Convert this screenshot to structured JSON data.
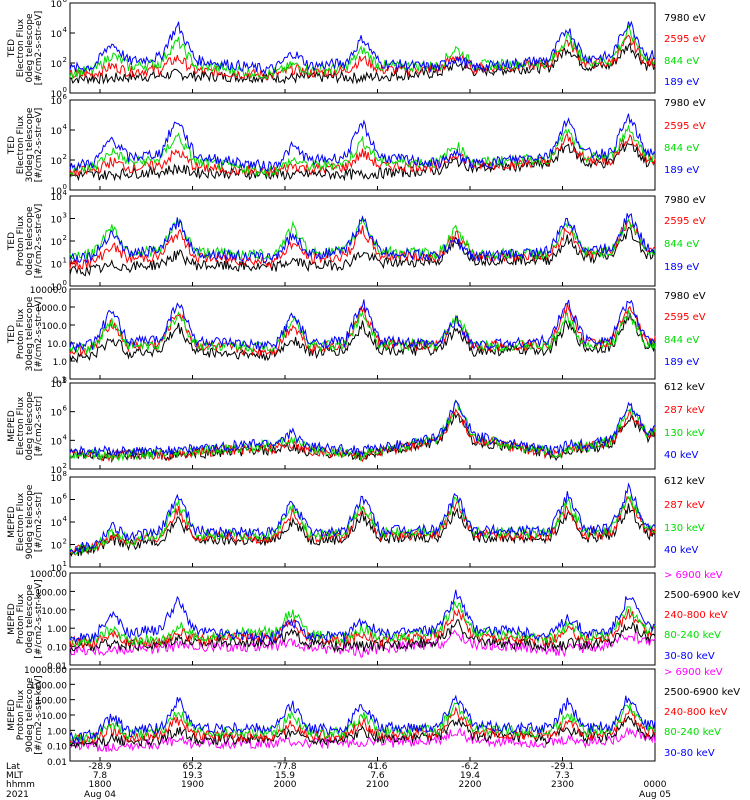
{
  "colors": {
    "blue": "#0000ff",
    "red": "#ff0000",
    "green": "#00dd00",
    "black": "#000000",
    "magenta": "#ff00ff"
  },
  "time_axis": {
    "rows": [
      {
        "label": "Lat",
        "values": [
          "-28.9",
          "65.2",
          "-77.8",
          "41.6",
          "-6.2",
          "-29.1",
          ""
        ]
      },
      {
        "label": "MLT",
        "values": [
          "7.8",
          "19.3",
          "15.9",
          "7.6",
          "19.4",
          "7.3",
          ""
        ]
      },
      {
        "label": "hhmm",
        "values": [
          "1800",
          "1900",
          "2000",
          "2100",
          "2200",
          "2300",
          "0000"
        ]
      },
      {
        "label": "2021",
        "values": [
          "Aug 04",
          "",
          "",
          "",
          "",
          "",
          "Aug 05"
        ]
      }
    ]
  },
  "chart_data": [
    {
      "type": "line",
      "panel": 1,
      "ylabel": [
        "TED",
        "Electron Flux",
        "0deg telescope",
        "[#/cm2-s-str-eV]"
      ],
      "yscale": "log",
      "ylim": [
        1,
        1000000
      ],
      "ticks": [
        {
          "label": "10",
          "exp": "0"
        },
        {
          "label": "10",
          "exp": "2"
        },
        {
          "label": "10",
          "exp": "4"
        },
        {
          "label": "10",
          "exp": "6"
        }
      ],
      "legend": [
        {
          "name": "7980 eV",
          "color": "black"
        },
        {
          "name": "2595 eV",
          "color": "red"
        },
        {
          "name": "844 eV",
          "color": "green"
        },
        {
          "name": "189 eV",
          "color": "blue"
        }
      ],
      "x": [
        "1800",
        "1900",
        "2000",
        "2100",
        "2200",
        "2300",
        "0000"
      ],
      "series": [
        {
          "name": "189 eV",
          "values": [
            200,
            60000,
            200,
            5000,
            200,
            20000,
            100000
          ]
        },
        {
          "name": "844 eV",
          "values": [
            50,
            5000,
            30,
            800,
            1000,
            5000,
            20000
          ]
        },
        {
          "name": "2595 eV",
          "values": [
            20,
            300,
            20,
            200,
            300,
            3000,
            5000
          ]
        },
        {
          "name": "7980 eV",
          "values": [
            5,
            20,
            10,
            10,
            100,
            1000,
            2000
          ]
        }
      ]
    },
    {
      "type": "line",
      "panel": 2,
      "ylabel": [
        "TED",
        "Electron Flux",
        "30deg telescope",
        "[#/cm2-s-str-eV]"
      ],
      "yscale": "log",
      "ylim": [
        1,
        1000000
      ],
      "ticks": [
        {
          "label": "10",
          "exp": "0"
        },
        {
          "label": "10",
          "exp": "2"
        },
        {
          "label": "10",
          "exp": "4"
        },
        {
          "label": "10",
          "exp": "6"
        }
      ],
      "legend": [
        {
          "name": "7980 eV",
          "color": "black"
        },
        {
          "name": "2595 eV",
          "color": "red"
        },
        {
          "name": "844 eV",
          "color": "green"
        },
        {
          "name": "189 eV",
          "color": "blue"
        }
      ],
      "x": [
        "1800",
        "1900",
        "2000",
        "2100",
        "2200",
        "2300",
        "0000"
      ],
      "series": [
        {
          "name": "189 eV",
          "values": [
            200,
            100000,
            200,
            30000,
            200,
            50000,
            100000
          ]
        },
        {
          "name": "844 eV",
          "values": [
            50,
            8000,
            30,
            2000,
            1000,
            8000,
            20000
          ]
        },
        {
          "name": "2595 eV",
          "values": [
            20,
            500,
            20,
            300,
            300,
            3000,
            5000
          ]
        },
        {
          "name": "7980 eV",
          "values": [
            5,
            30,
            10,
            10,
            100,
            1000,
            2000
          ]
        }
      ]
    },
    {
      "type": "line",
      "panel": 3,
      "ylabel": [
        "TED",
        "Proton Flux",
        "0deg telescope",
        "[#/cm2-s-str-eV]"
      ],
      "yscale": "log",
      "ylim": [
        1,
        10000
      ],
      "ticks": [
        {
          "label": "10",
          "exp": "0"
        },
        {
          "label": "10",
          "exp": "1"
        },
        {
          "label": "10",
          "exp": "2"
        },
        {
          "label": "10",
          "exp": "3"
        },
        {
          "label": "10",
          "exp": "4"
        }
      ],
      "legend": [
        {
          "name": "7980 eV",
          "color": "black"
        },
        {
          "name": "2595 eV",
          "color": "red"
        },
        {
          "name": "844 eV",
          "color": "green"
        },
        {
          "name": "189 eV",
          "color": "blue"
        }
      ],
      "x": [
        "1800",
        "1900",
        "2000",
        "2100",
        "2200",
        "2300",
        "0000"
      ],
      "series": [
        {
          "name": "189 eV",
          "values": [
            100,
            1000,
            100,
            1000,
            100,
            1000,
            2000
          ]
        },
        {
          "name": "844 eV",
          "values": [
            300,
            1000,
            300,
            1000,
            300,
            500,
            1000
          ]
        },
        {
          "name": "2595 eV",
          "values": [
            20,
            300,
            50,
            300,
            200,
            300,
            1500
          ]
        },
        {
          "name": "7980 eV",
          "values": [
            3,
            30,
            10,
            30,
            100,
            100,
            500
          ]
        }
      ]
    },
    {
      "type": "line",
      "panel": 4,
      "ylabel": [
        "TED",
        "Proton Flux",
        "30deg telescope",
        "[#/cm2-s-str-eV]"
      ],
      "yscale": "log",
      "ylim": [
        0.1,
        10000
      ],
      "ticks": [
        {
          "label": "0.1"
        },
        {
          "label": "1.0"
        },
        {
          "label": "10.0"
        },
        {
          "label": "100.0"
        },
        {
          "label": "1000.0"
        },
        {
          "label": "10000.0"
        }
      ],
      "legend": [
        {
          "name": "7980 eV",
          "color": "black"
        },
        {
          "name": "2595 eV",
          "color": "red"
        },
        {
          "name": "844 eV",
          "color": "green"
        },
        {
          "name": "189 eV",
          "color": "blue"
        }
      ],
      "x": [
        "1800",
        "1900",
        "2000",
        "2100",
        "2200",
        "2300",
        "0000"
      ],
      "series": [
        {
          "name": "189 eV",
          "values": [
            200,
            3000,
            200,
            2000,
            200,
            2000,
            3000
          ]
        },
        {
          "name": "844 eV",
          "values": [
            100,
            500,
            200,
            500,
            300,
            300,
            500
          ]
        },
        {
          "name": "2595 eV",
          "values": [
            50,
            800,
            50,
            800,
            200,
            800,
            1500
          ]
        },
        {
          "name": "7980 eV",
          "values": [
            5,
            100,
            10,
            100,
            50,
            100,
            500
          ]
        }
      ]
    },
    {
      "type": "line",
      "panel": 5,
      "ylabel": [
        "MEPED",
        "Electron Flux",
        "0deg telescope",
        "[#/cm2-s-str]"
      ],
      "yscale": "log",
      "ylim": [
        10,
        100000000
      ],
      "ticks": [
        {
          "label": "10",
          "exp": "2"
        },
        {
          "label": "10",
          "exp": "4"
        },
        {
          "label": "10",
          "exp": "6"
        },
        {
          "label": "10",
          "exp": "8"
        }
      ],
      "legend": [
        {
          "name": "612 keV",
          "color": "black"
        },
        {
          "name": "287 keV",
          "color": "red"
        },
        {
          "name": "130 keV",
          "color": "green"
        },
        {
          "name": "40 keV",
          "color": "blue"
        }
      ],
      "x": [
        "1800",
        "1900",
        "2000",
        "2100",
        "2200",
        "2300",
        "0000"
      ],
      "series": [
        {
          "name": "40 keV",
          "values": [
            300,
            300,
            30000,
            300,
            5000000,
            300,
            50000000
          ]
        },
        {
          "name": "130 keV",
          "values": [
            100,
            100,
            10000,
            100,
            3000000,
            100,
            30000000
          ]
        },
        {
          "name": "287 keV",
          "values": [
            100,
            100,
            3000,
            100,
            1000000,
            100,
            10000000
          ]
        },
        {
          "name": "612 keV",
          "values": [
            100,
            100,
            1000,
            100,
            500000,
            100,
            3000000
          ]
        }
      ]
    },
    {
      "type": "line",
      "panel": 6,
      "ylabel": [
        "MEPED",
        "Electron Flux",
        "90deg telescope",
        "[#/cm2-s-str]"
      ],
      "yscale": "log",
      "ylim": [
        10,
        100000000
      ],
      "ticks": [
        {
          "label": "10",
          "exp": "1"
        },
        {
          "label": "10",
          "exp": "2"
        },
        {
          "label": "10",
          "exp": "4"
        },
        {
          "label": "10",
          "exp": "6"
        },
        {
          "label": "10",
          "exp": "8"
        }
      ],
      "legend": [
        {
          "name": "612 keV",
          "color": "black"
        },
        {
          "name": "287 keV",
          "color": "red"
        },
        {
          "name": "130 keV",
          "color": "green"
        },
        {
          "name": "40 keV",
          "color": "blue"
        }
      ],
      "x": [
        "1800",
        "1900",
        "2000",
        "2100",
        "2200",
        "2300",
        "0000"
      ],
      "series": [
        {
          "name": "40 keV",
          "values": [
            300,
            5000000,
            1000000,
            3000000,
            5000000,
            3000000,
            30000000
          ]
        },
        {
          "name": "130 keV",
          "values": [
            100,
            1000000,
            300000,
            1000000,
            2000000,
            1000000,
            10000000
          ]
        },
        {
          "name": "287 keV",
          "values": [
            100,
            300000,
            100000,
            300000,
            1000000,
            300000,
            5000000
          ]
        },
        {
          "name": "612 keV",
          "values": [
            100,
            50000,
            30000,
            100000,
            300000,
            100000,
            1000000
          ]
        }
      ]
    },
    {
      "type": "line",
      "panel": 7,
      "ylabel": [
        "MEPED",
        "Proton Flux",
        "0deg telescope",
        "[#/cm2-s-str-keV]"
      ],
      "yscale": "log",
      "ylim": [
        0.01,
        1000
      ],
      "ticks": [
        {
          "label": "0.01"
        },
        {
          "label": "0.10"
        },
        {
          "label": "1.00"
        },
        {
          "label": "10.00"
        },
        {
          "label": "100.00"
        },
        {
          "label": "1000.00"
        }
      ],
      "legend": [
        {
          "name": "> 6900 keV",
          "color": "magenta"
        },
        {
          "name": "2500-6900 keV",
          "color": "black"
        },
        {
          "name": "240-800 keV",
          "color": "red"
        },
        {
          "name": "80-240 keV",
          "color": "green"
        },
        {
          "name": "30-80 keV",
          "color": "blue"
        }
      ],
      "x": [
        "1800",
        "1900",
        "2000",
        "2100",
        "2200",
        "2300",
        "0000"
      ],
      "series": [
        {
          "name": "30-80 keV",
          "values": [
            1,
            50,
            2,
            3,
            100,
            3,
            200
          ]
        },
        {
          "name": "80-240 keV",
          "values": [
            0.8,
            1,
            20,
            1,
            30,
            1,
            50
          ]
        },
        {
          "name": "240-800 keV",
          "values": [
            0.5,
            0.5,
            5,
            0.5,
            10,
            0.5,
            20
          ]
        },
        {
          "name": "2500-6900 keV",
          "values": [
            0.1,
            0.3,
            1,
            0.1,
            2,
            0.1,
            5
          ]
        },
        {
          "name": "> 6900 keV",
          "values": [
            0.05,
            0.1,
            0.2,
            0.05,
            0.5,
            0.05,
            1
          ]
        }
      ]
    },
    {
      "type": "line",
      "panel": 8,
      "ylabel": [
        "MEPED",
        "Proton Flux",
        "90deg telescope",
        "[#/cm2-s-str-keV]"
      ],
      "yscale": "log",
      "ylim": [
        0.01,
        10000
      ],
      "ticks": [
        {
          "label": "0.01"
        },
        {
          "label": "0.10"
        },
        {
          "label": "1.00"
        },
        {
          "label": "10.00"
        },
        {
          "label": "100.00"
        },
        {
          "label": "1000.00"
        },
        {
          "label": "10000.00"
        }
      ],
      "legend": [
        {
          "name": "> 6900 keV",
          "color": "magenta"
        },
        {
          "name": "2500-6900 keV",
          "color": "black"
        },
        {
          "name": "240-800 keV",
          "color": "red"
        },
        {
          "name": "80-240 keV",
          "color": "green"
        },
        {
          "name": "30-80 keV",
          "color": "blue"
        }
      ],
      "x": [
        "1800",
        "1900",
        "2000",
        "2100",
        "2200",
        "2300",
        "0000"
      ],
      "series": [
        {
          "name": "30-80 keV",
          "values": [
            1,
            100,
            50,
            50,
            200,
            50,
            300
          ]
        },
        {
          "name": "80-240 keV",
          "values": [
            0.8,
            20,
            10,
            10,
            50,
            10,
            80
          ]
        },
        {
          "name": "240-800 keV",
          "values": [
            0.5,
            5,
            3,
            3,
            20,
            3,
            30
          ]
        },
        {
          "name": "2500-6900 keV",
          "values": [
            0.1,
            1,
            1,
            1,
            5,
            1,
            8
          ]
        },
        {
          "name": "> 6900 keV",
          "values": [
            0.05,
            0.2,
            0.2,
            0.2,
            1,
            0.2,
            2
          ]
        }
      ]
    }
  ]
}
